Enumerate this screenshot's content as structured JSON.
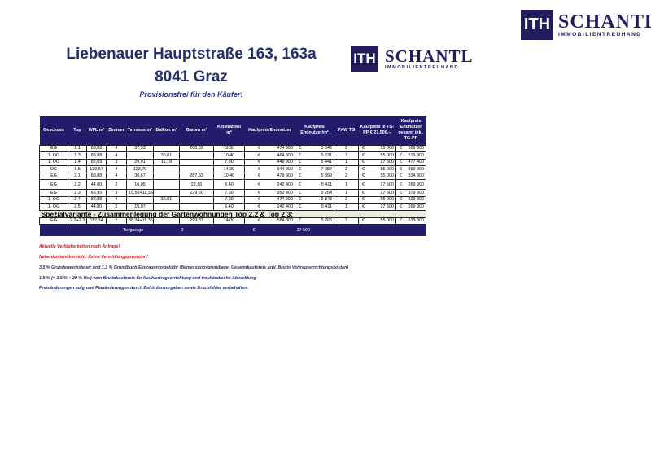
{
  "logo": {
    "mark": "ITH",
    "name": "SCHANTL",
    "sub": "IMMOBILIENTREUHAND"
  },
  "title": {
    "line1": "Liebenauer Hauptstraße 163, 163a",
    "line2": "8041 Graz",
    "subtitle": "Provisionsfrei für den Käufer!"
  },
  "table": {
    "headers": [
      "Geschoss",
      "Top",
      "WFL m²",
      "Zimmer",
      "Terrasse m²",
      "Balkon m²",
      "Garten m²",
      "Kellerabteil m²",
      "Kaufpreis Endnutzer",
      "Kaufpreis Endnutzer/m²",
      "PKW TG",
      "Kaufpreis je TG-PP € 27.500,--",
      "Kaufpreis Endnutzer gesamt inkl. TG-PP"
    ],
    "rows": [
      [
        "EG",
        "1.1",
        "88,88",
        "4",
        "37,33",
        "",
        "288,09",
        "12,30",
        "474 900",
        "5 343",
        "2",
        "55 000",
        "529 900"
      ],
      [
        "1. OG",
        "1.3",
        "88,88",
        "4",
        "",
        "36,01",
        "",
        "10,40",
        "464 900",
        "5 231",
        "2",
        "55 000",
        "519 900"
      ],
      [
        "1. OG",
        "1.4",
        "82,69",
        "3",
        "29,01",
        "11,19",
        "",
        "7,30",
        "449 900",
        "5 441",
        "1",
        "27 500",
        "477 400"
      ],
      [
        "DG",
        "1.5",
        "129,67",
        "4",
        "123,70",
        "",
        "",
        "14,30",
        "944 900",
        "7 287",
        "2",
        "55 000",
        "999 900"
      ],
      [
        "EG",
        "2.1",
        "88,88",
        "4",
        "36,67",
        "",
        "287,83",
        "10,40",
        "479 900",
        "5 399",
        "2",
        "55 000",
        "534 900"
      ],
      [
        "EG",
        "2.2",
        "44,80",
        "2",
        "16,05",
        "",
        "22,10",
        "6,40",
        "242 400",
        "5 411",
        "1",
        "27 500",
        "269 900"
      ],
      [
        "EG",
        "2.3",
        "66,95",
        "3",
        "19,58+11,35",
        "",
        "229,60",
        "7,60",
        "352 400",
        "5 264",
        "1",
        "27 500",
        "379 900"
      ],
      [
        "1. OG",
        "2.4",
        "88,88",
        "4",
        "",
        "36,01",
        "",
        "7,60",
        "474 900",
        "5 343",
        "2",
        "55 000",
        "529 900"
      ],
      [
        "1. OG",
        "2.5",
        "44,80",
        "2",
        "15,97",
        "",
        "",
        "6,40",
        "242 400",
        "5 411",
        "1",
        "27 500",
        "269 900"
      ]
    ],
    "special_label": "Spezialvariante - Zusammenlegung der Gartenwohnungen Top 2.2 & Top 2.3:",
    "special_row": [
      "EG",
      "2.2+2.3",
      "112,34",
      "5",
      "38,34+11,35",
      "",
      "299,83",
      "14,00",
      "584 800",
      "5 206",
      "2",
      "55 000",
      "639 800"
    ],
    "footer": {
      "label": "Tiefgarage",
      "count": "3",
      "currency": "€",
      "price": "27 500"
    },
    "currency": "€"
  },
  "notes": [
    "Aktuelle Verfügbarkeiten nach Anfrage!",
    "Nebenkostenübersicht:  Keine Vermittlungsprovision!",
    "3,5 % Grunderwerbsteuer und 1,1 % Grundbuch-Eintragungsgebühr (Bemessungsgrundlage: Gesamtkaufpreis zzgl. Brutto Vertragserrichtungskosten)",
    "1,8 % (= 1,5 % + 20 % Ust) vom Bruttokaufpreis für Kaufvertragserrichtung und treuhändische Abwicklung",
    "Preisänderungen aufgrund Planänderungen durch Behördenvorgaben sowie Druckfehler vorbehalten."
  ],
  "colors": {
    "brand": "#221c5c",
    "header": "#231b6b",
    "warning": "#d21b1b"
  }
}
